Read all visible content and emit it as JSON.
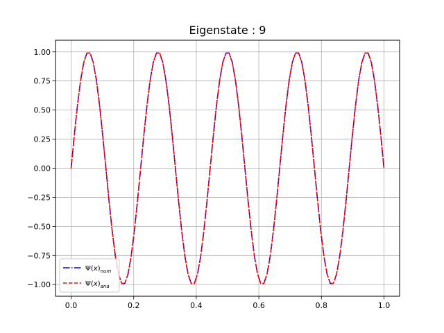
{
  "chart_data": {
    "type": "line",
    "title": "Eigenstate : 9",
    "xlabel": "",
    "ylabel": "",
    "xlim": [
      -0.05,
      1.05
    ],
    "ylim": [
      -1.1,
      1.1
    ],
    "xticks": [
      0.0,
      0.2,
      0.4,
      0.6,
      0.8,
      1.0
    ],
    "xtick_labels": [
      "0.0",
      "0.2",
      "0.4",
      "0.6",
      "0.8",
      "1.0"
    ],
    "yticks": [
      -1.0,
      -0.75,
      -0.5,
      -0.25,
      0.0,
      0.25,
      0.5,
      0.75,
      1.0
    ],
    "ytick_labels": [
      "−1.00",
      "−0.75",
      "−0.50",
      "−0.25",
      "0.00",
      "0.25",
      "0.50",
      "0.75",
      "1.00"
    ],
    "grid": true,
    "legend_position": "lower-left",
    "series": [
      {
        "name": "Ψ(x)num",
        "legend_main": "Ψ(",
        "legend_var": "x",
        "legend_close": ")",
        "legend_sub": "num",
        "color": "#0000ff",
        "linestyle": "dashdot",
        "function": "sin(9*pi*x)",
        "x_range": [
          0,
          1
        ],
        "samples": 100
      },
      {
        "name": "Ψ(x)ana",
        "legend_main": "Ψ(",
        "legend_var": "x",
        "legend_close": ")",
        "legend_sub": "ana",
        "color": "#ff0000",
        "linestyle": "dashed",
        "function": "sin(9*pi*x)",
        "x_range": [
          0,
          1
        ],
        "samples": 100
      }
    ]
  }
}
